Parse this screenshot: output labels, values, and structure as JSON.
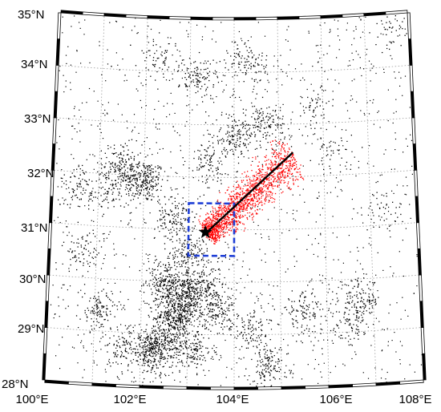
{
  "map": {
    "lon_range": [
      100,
      108
    ],
    "lat_range": [
      28,
      35
    ],
    "grid_step_deg": 1,
    "lon_ticks": [
      {
        "lon": 100,
        "label": "100°E"
      },
      {
        "lon": 102,
        "label": "102°E"
      },
      {
        "lon": 104,
        "label": "104°E"
      },
      {
        "lon": 106,
        "label": "106°E"
      },
      {
        "lon": 108,
        "label": "108°E"
      }
    ],
    "lat_ticks": [
      {
        "lat": 28,
        "label": "28°N"
      },
      {
        "lat": 29,
        "label": "29°N"
      },
      {
        "lat": 30,
        "label": "30°N"
      },
      {
        "lat": 31,
        "label": "31°N"
      },
      {
        "lat": 32,
        "label": "32°N"
      },
      {
        "lat": 33,
        "label": "33°N"
      },
      {
        "lat": 34,
        "label": "34°N"
      },
      {
        "lat": 35,
        "label": "35°N"
      }
    ],
    "background_seismicity": {
      "color": "#000000",
      "clusters": [
        {
          "lon": 102.0,
          "lat": 31.9,
          "count": 220
        },
        {
          "lon": 101.5,
          "lat": 32.2,
          "count": 150
        },
        {
          "lon": 101.3,
          "lat": 31.7,
          "count": 90
        },
        {
          "lon": 102.7,
          "lat": 31.2,
          "count": 120
        },
        {
          "lon": 103.0,
          "lat": 30.5,
          "count": 140
        },
        {
          "lon": 102.5,
          "lat": 30.0,
          "count": 200
        },
        {
          "lon": 102.9,
          "lat": 29.7,
          "count": 260
        },
        {
          "lon": 102.7,
          "lat": 29.3,
          "count": 300
        },
        {
          "lon": 103.3,
          "lat": 29.9,
          "count": 180
        },
        {
          "lon": 103.6,
          "lat": 29.5,
          "count": 160
        },
        {
          "lon": 102.4,
          "lat": 28.8,
          "count": 240
        },
        {
          "lon": 102.2,
          "lat": 28.6,
          "count": 150
        },
        {
          "lon": 103.1,
          "lat": 28.7,
          "count": 150
        },
        {
          "lon": 101.1,
          "lat": 29.4,
          "count": 120
        },
        {
          "lon": 101.6,
          "lat": 28.7,
          "count": 90
        },
        {
          "lon": 104.7,
          "lat": 28.4,
          "count": 130
        },
        {
          "lon": 104.4,
          "lat": 29.1,
          "count": 90
        },
        {
          "lon": 105.5,
          "lat": 29.4,
          "count": 110
        },
        {
          "lon": 106.7,
          "lat": 29.6,
          "count": 130
        },
        {
          "lon": 106.5,
          "lat": 29.1,
          "count": 70
        },
        {
          "lon": 104.0,
          "lat": 32.8,
          "count": 140
        },
        {
          "lon": 104.7,
          "lat": 33.0,
          "count": 120
        },
        {
          "lon": 103.4,
          "lat": 32.3,
          "count": 90
        },
        {
          "lon": 103.2,
          "lat": 33.9,
          "count": 110
        },
        {
          "lon": 104.3,
          "lat": 34.2,
          "count": 90
        },
        {
          "lon": 102.3,
          "lat": 34.2,
          "count": 60
        },
        {
          "lon": 100.6,
          "lat": 31.7,
          "count": 80
        },
        {
          "lon": 100.7,
          "lat": 30.5,
          "count": 70
        },
        {
          "lon": 107.6,
          "lat": 34.7,
          "count": 40
        },
        {
          "lon": 106.2,
          "lat": 32.4,
          "count": 40
        },
        {
          "lon": 105.8,
          "lat": 33.3,
          "count": 50
        },
        {
          "lon": 107.3,
          "lat": 31.3,
          "count": 40
        }
      ],
      "scattered_count": 1300
    },
    "aftershocks": {
      "color": "#ff0000",
      "start": {
        "lon": 103.4,
        "lat": 30.95
      },
      "end": {
        "lon": 105.3,
        "lat": 32.4
      },
      "count": 1500
    },
    "rupture_line": {
      "color": "#000000",
      "start": {
        "lon": 103.4,
        "lat": 30.95
      },
      "end": {
        "lon": 105.3,
        "lat": 32.45
      }
    },
    "epicenter": {
      "lon": 103.37,
      "lat": 30.95,
      "color": "#000000",
      "icon": "star-icon"
    },
    "study_box": {
      "lon": [
        103.0,
        104.0
      ],
      "lat": [
        30.5,
        31.5
      ],
      "color": "#1f3fd6"
    }
  }
}
